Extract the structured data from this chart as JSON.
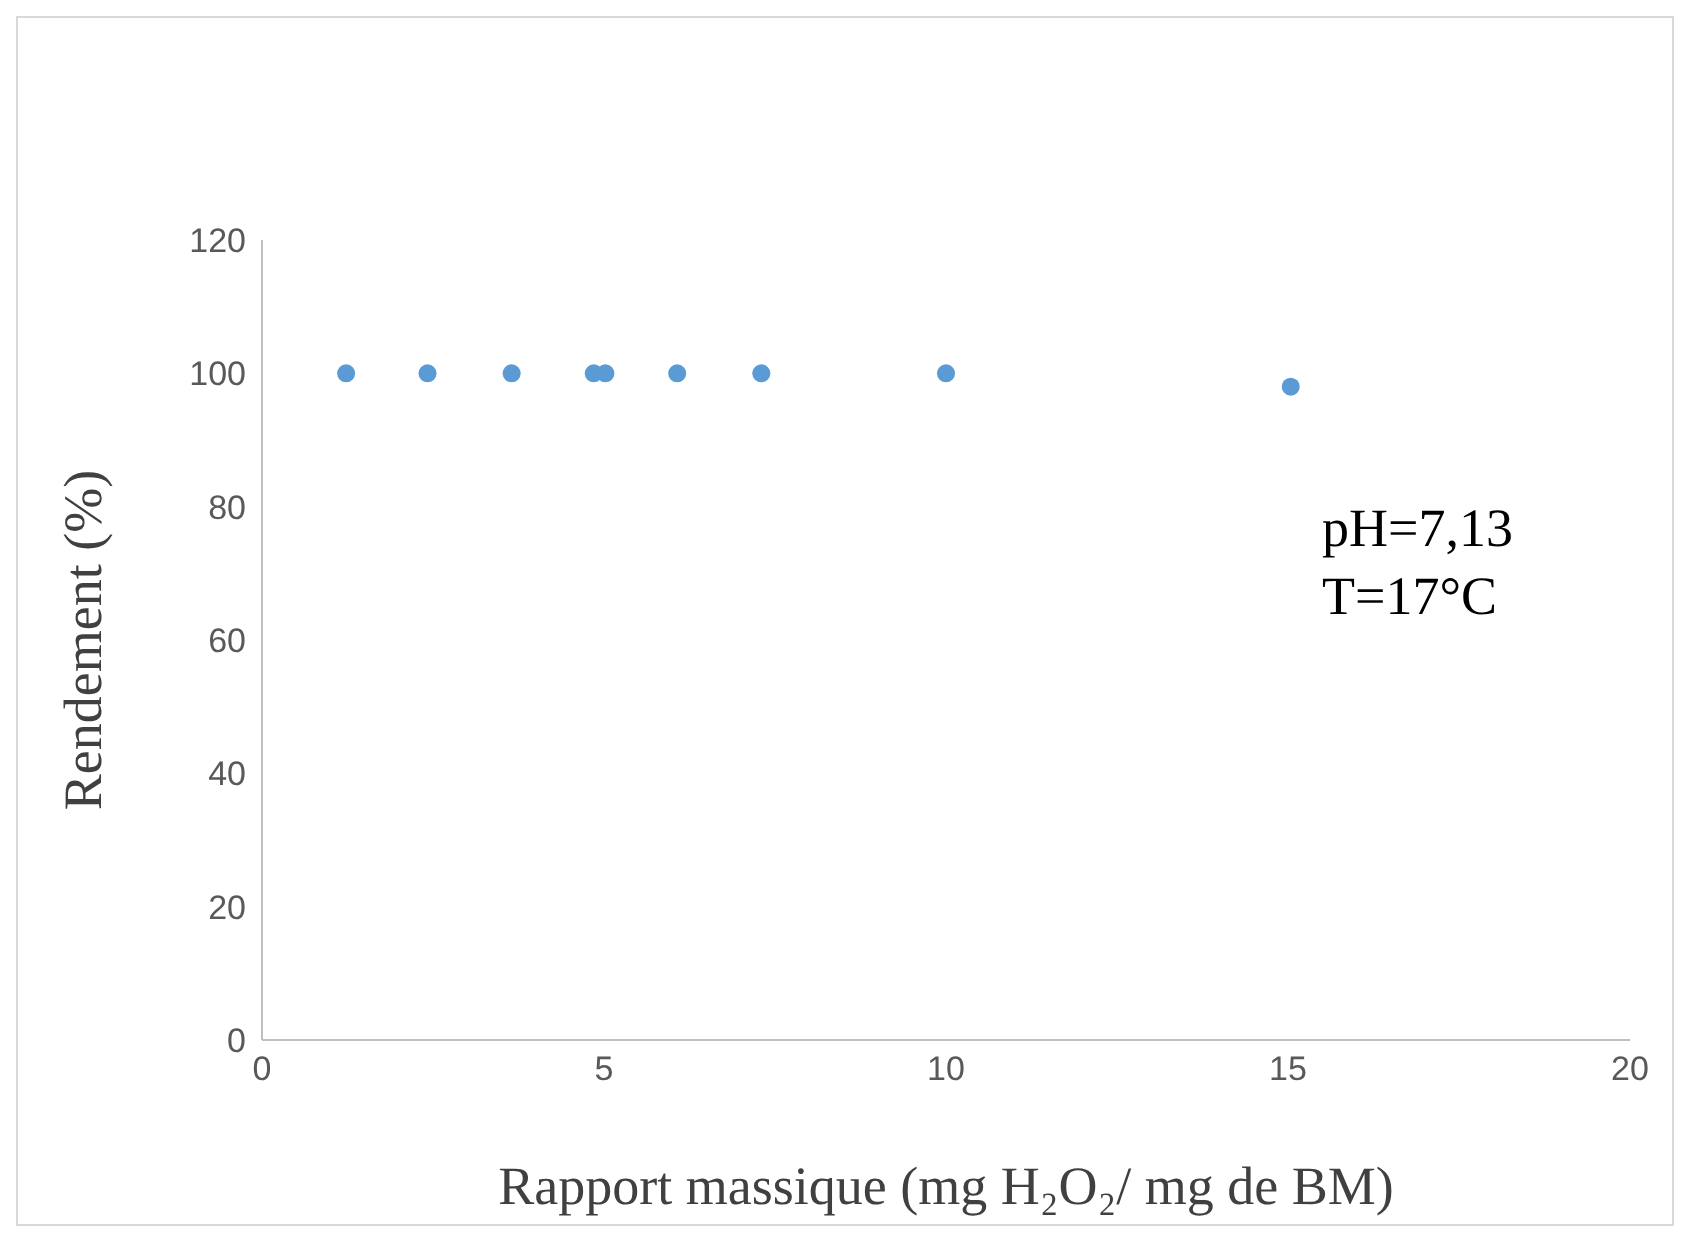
{
  "chart_data": {
    "type": "scatter",
    "xlabel": "Rapport massique (mg H₂O₂/ mg de BM)",
    "ylabel": "Rendement (%)",
    "x": [
      1.23,
      2.42,
      3.65,
      4.85,
      5.02,
      6.07,
      7.3,
      10,
      15.04
    ],
    "series": [
      {
        "color": "#5b9bd5",
        "values": [
          100,
          100,
          100,
          100,
          100,
          100,
          100,
          100,
          98
        ]
      }
    ],
    "xlim": [
      0,
      20
    ],
    "xticks": [
      0,
      5,
      10,
      15,
      20
    ],
    "ylim": [
      0,
      120
    ],
    "yticks": [
      0,
      20,
      40,
      60,
      80,
      100,
      120
    ],
    "grid": false,
    "legend": false,
    "marker": "circle",
    "annotations": [
      "pH=7,13",
      "T=17°C"
    ]
  }
}
